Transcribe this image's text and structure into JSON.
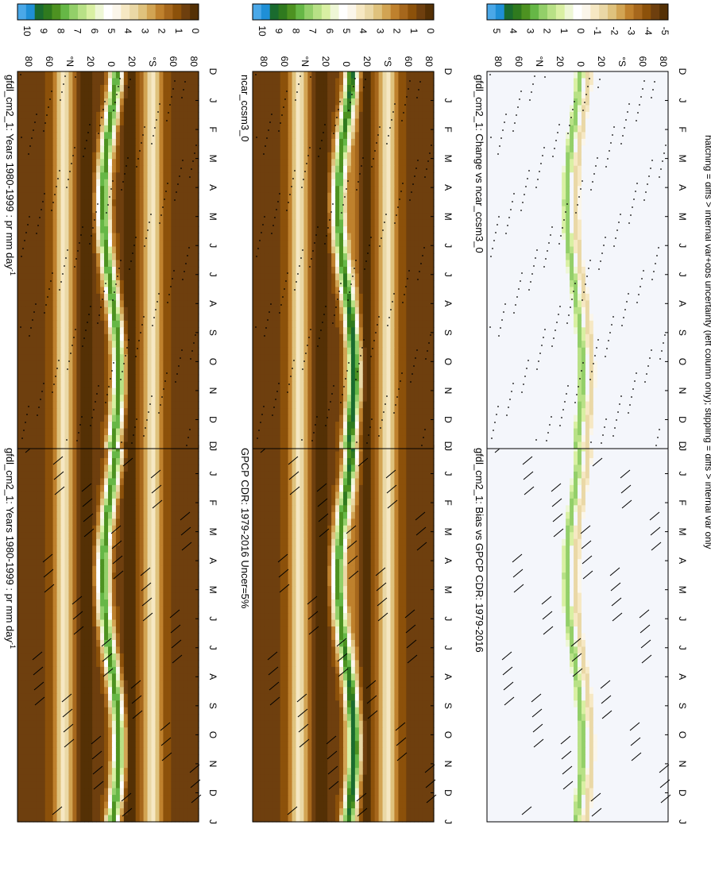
{
  "footnote": "hatching = diffs > internal var+obs uncertainty (left column only); stippling = diffs > internal var only",
  "palette_brown_green": [
    "#543005",
    "#6e3f0e",
    "#8c510a",
    "#a6671c",
    "#bf812d",
    "#d2a453",
    "#dfc27d",
    "#ead8a6",
    "#f6e8c3",
    "#fbf6ea",
    "#ffffff",
    "#eef7d6",
    "#d9f0a3",
    "#b8e186",
    "#93cf69",
    "#66b746",
    "#4d9221",
    "#2f7a1e",
    "#1a6b2f",
    "#1f8fd6",
    "#4aa8e8"
  ],
  "charts": [
    {
      "id": "gfdl-left",
      "title": "gfdl_cm2_1: Years 1980-1999 : pr mm day",
      "title_sup": "-1",
      "mark": "hatch",
      "kind": "abs",
      "colorbar": {
        "ticks": [
          "10",
          "9",
          "8",
          "7",
          "6",
          "5",
          "4",
          "3",
          "2",
          "1",
          "0"
        ]
      }
    },
    {
      "id": "gfdl-right",
      "title": "gfdl_cm2_1: Years 1980-1999 : pr mm day",
      "title_sup": "-1",
      "mark": "stipple",
      "kind": "abs",
      "colorbar": {
        "ticks": [
          "10",
          "9",
          "8",
          "7",
          "6",
          "5",
          "4",
          "3",
          "2",
          "1",
          "0"
        ]
      }
    },
    {
      "id": "obs",
      "title": "GPCP CDR: 1979-2016 Uncer=5%",
      "title_sup": "",
      "mark": "hatch",
      "kind": "abs",
      "colorbar": {
        "ticks": [
          "10",
          "9",
          "8",
          "7",
          "6",
          "5",
          "4",
          "3",
          "2",
          "1",
          "0"
        ]
      }
    },
    {
      "id": "ncar",
      "title": "ncar_ccsm3_0",
      "title_sup": "",
      "mark": "stipple",
      "kind": "abs",
      "colorbar": {
        "ticks": [
          "10",
          "9",
          "8",
          "7",
          "6",
          "5",
          "4",
          "3",
          "2",
          "1",
          "0"
        ]
      }
    },
    {
      "id": "bias",
      "title": "gfdl_cm2_1: Bias vs GPCP CDR: 1979-2016",
      "title_sup": "",
      "mark": "hatch",
      "kind": "diff",
      "colorbar": {
        "ticks": [
          "5",
          "4",
          "3",
          "2",
          "1",
          "0",
          "-1",
          "-2",
          "-3",
          "-4",
          "-5"
        ]
      }
    },
    {
      "id": "change",
      "title": "gfdl_cm2_1: Change vs ncar_ccsm3_0",
      "title_sup": "",
      "mark": "stipple",
      "kind": "diff",
      "colorbar": {
        "ticks": [
          "5",
          "4",
          "3",
          "2",
          "1",
          "0",
          "-1",
          "-2",
          "-3",
          "-4",
          "-5"
        ]
      }
    }
  ],
  "chart_data": {
    "type": "heatmap",
    "x_ticks": [
      "D",
      "J",
      "F",
      "M",
      "A",
      "M",
      "J",
      "J",
      "A",
      "S",
      "O",
      "N",
      "D",
      "J"
    ],
    "y_ticks": [
      "80",
      "60",
      "°N",
      "20",
      "0",
      "20",
      "°S",
      "60",
      "80"
    ],
    "x_axis": "month",
    "y_axis": "latitude",
    "colorbar_range_abs": [
      0,
      10
    ],
    "colorbar_range_diff": [
      -5,
      5
    ]
  }
}
